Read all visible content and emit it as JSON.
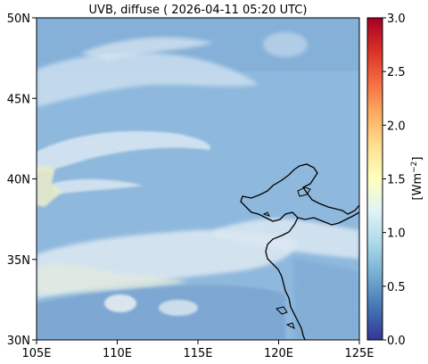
{
  "title": "UVB, diffuse ( 2026-04-11 05:20 UTC)",
  "x_ticks": [
    "105E",
    "110E",
    "115E",
    "120E",
    "125E"
  ],
  "y_ticks": [
    "30N",
    "35N",
    "40N",
    "45N",
    "50N"
  ],
  "lon_range": [
    105,
    125
  ],
  "lat_range": [
    30,
    50
  ],
  "colorbar": {
    "label": "[Wm",
    "label_sup": "−2",
    "label_end": "]",
    "ticks": [
      "0.0",
      "0.5",
      "1.0",
      "1.5",
      "2.0",
      "2.5",
      "3.0"
    ],
    "range": [
      0.0,
      3.0
    ],
    "colormap": "RdYlBu_r",
    "colors": [
      "#313695",
      "#4575b4",
      "#74add1",
      "#abd9e9",
      "#e0f3f8",
      "#ffffbf",
      "#fee090",
      "#fdae61",
      "#f46d43",
      "#d73027",
      "#a50026"
    ]
  },
  "colors": {
    "field_base": "#8fb9dc",
    "cloud": "#dceaf2",
    "coast": "#000000"
  }
}
